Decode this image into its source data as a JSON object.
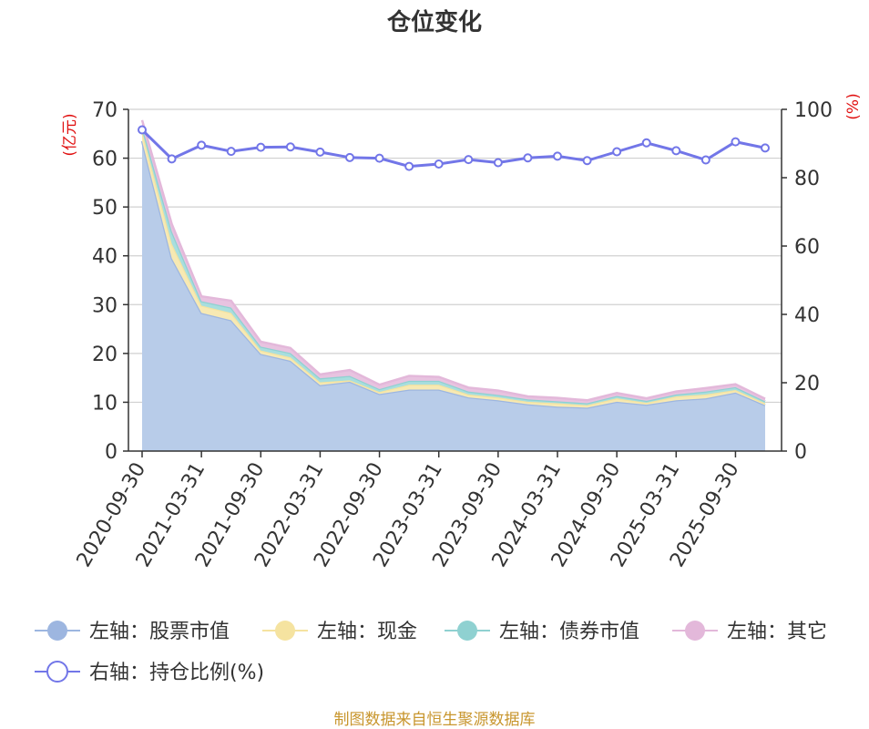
{
  "chart_data": {
    "type": "area",
    "title": "仓位变化",
    "left_axis": {
      "unit": "(亿元)",
      "ticks": [
        0,
        10,
        20,
        30,
        40,
        50,
        60,
        70
      ],
      "range": [
        0,
        70
      ]
    },
    "right_axis": {
      "unit": "(%)",
      "ticks": [
        0,
        20,
        40,
        60,
        80,
        100
      ],
      "range": [
        0,
        100
      ]
    },
    "x_tick_labels": [
      "2020-09-30",
      "2021-03-31",
      "2021-09-30",
      "2022-03-31",
      "2022-09-30",
      "2023-03-31",
      "2023-09-30",
      "2024-03-31",
      "2024-09-30",
      "2025-03-31",
      "2025-09-30"
    ],
    "x": [
      "2020-09-30",
      "2020-12-31",
      "2021-03-31",
      "2021-06-30",
      "2021-09-30",
      "2021-12-31",
      "2022-03-31",
      "2022-06-30",
      "2022-09-30",
      "2022-12-31",
      "2023-03-31",
      "2023-06-30",
      "2023-09-30",
      "2023-12-31",
      "2024-03-31",
      "2024-06-30",
      "2024-09-30",
      "2024-12-31",
      "2025-03-31",
      "2025-06-30",
      "2025-09-30",
      "2025-12-31"
    ],
    "series": [
      {
        "name": "左轴：股票市值",
        "axis": "left",
        "stacked": true,
        "color": "#9db6e0",
        "fill": "#b8cce9",
        "values": [
          63.5,
          39.5,
          28.3,
          26.8,
          19.9,
          18.5,
          13.5,
          14.2,
          11.7,
          12.6,
          12.6,
          11.0,
          10.4,
          9.6,
          9.1,
          8.9,
          10.1,
          9.5,
          10.4,
          10.8,
          12.0,
          9.4
        ]
      },
      {
        "name": "左轴：现金",
        "axis": "left",
        "stacked": true,
        "color": "#f5e3a0",
        "fill": "#f7e9b3",
        "values": [
          2.0,
          3.0,
          1.5,
          1.5,
          0.7,
          0.7,
          0.6,
          0.3,
          0.4,
          1.0,
          1.0,
          0.6,
          0.6,
          0.5,
          0.7,
          0.5,
          0.7,
          0.4,
          0.8,
          0.8,
          0.5,
          0.4
        ]
      },
      {
        "name": "左轴：债券市值",
        "axis": "left",
        "stacked": true,
        "color": "#8fd1d1",
        "fill": "#a8dede",
        "values": [
          1.0,
          2.5,
          0.9,
          1.1,
          0.8,
          0.9,
          0.8,
          0.9,
          0.6,
          0.8,
          0.8,
          0.6,
          0.5,
          0.5,
          0.4,
          0.4,
          0.5,
          0.4,
          0.4,
          0.6,
          0.6,
          0.4
        ]
      },
      {
        "name": "左轴：其它",
        "axis": "left",
        "stacked": true,
        "color": "#e3b8da",
        "fill": "#e8c3e0",
        "values": [
          1.3,
          1.5,
          1.0,
          1.4,
          1.0,
          1.0,
          0.8,
          1.2,
          0.9,
          1.0,
          0.8,
          0.8,
          0.9,
          0.6,
          0.7,
          0.6,
          0.6,
          0.5,
          0.6,
          0.7,
          0.6,
          0.5
        ]
      },
      {
        "name": "右轴：持仓比例(%)",
        "axis": "right",
        "type": "line",
        "color": "#7276e8",
        "values": [
          94.0,
          85.5,
          89.5,
          87.7,
          88.9,
          89.0,
          87.5,
          85.9,
          85.7,
          83.3,
          84.0,
          85.3,
          84.4,
          85.8,
          86.3,
          85.0,
          87.6,
          90.2,
          87.9,
          85.2,
          90.5,
          88.7
        ]
      }
    ],
    "grid": true,
    "legend_position": "bottom"
  },
  "source_note": "制图数据来自恒生聚源数据库"
}
